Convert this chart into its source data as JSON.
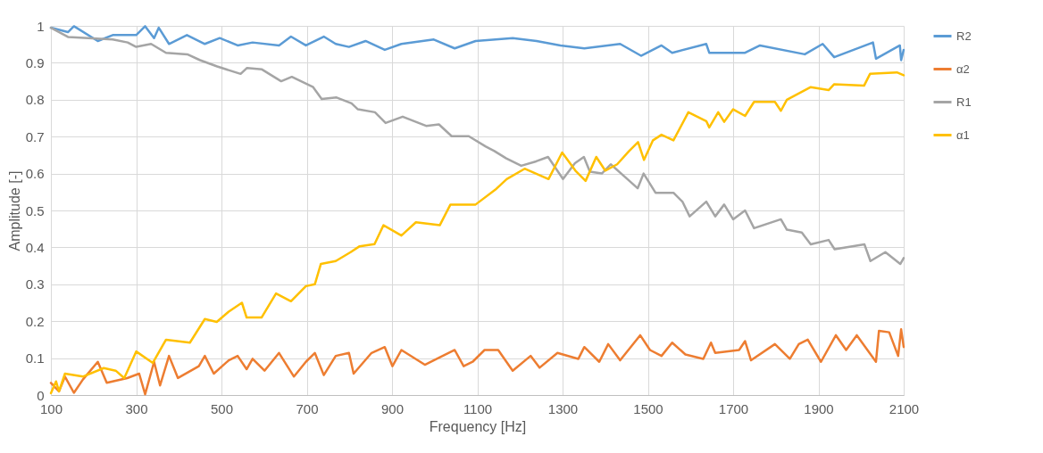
{
  "chart_data": {
    "type": "line",
    "xlabel": "Frequency [Hz]",
    "ylabel": "Amplitude [-]",
    "xlim": [
      100,
      2100
    ],
    "ylim": [
      0,
      1
    ],
    "xticks": [
      100,
      300,
      500,
      700,
      900,
      1100,
      1300,
      1500,
      1700,
      1900,
      2100
    ],
    "yticks": [
      0,
      0.1,
      0.2,
      0.3,
      0.4,
      0.5,
      0.6,
      0.7,
      0.8,
      0.9,
      1
    ],
    "grid": true,
    "legend": "right",
    "marker": "none",
    "line_style": "solid",
    "series": [
      {
        "name": "R2",
        "color": "#5b9bd5",
        "x": [
          100,
          140,
          154,
          210,
          245,
          300,
          321,
          342,
          353,
          377,
          419,
          461,
          496,
          538,
          573,
          635,
          663,
          698,
          740,
          768,
          799,
          838,
          883,
          922,
          998,
          1047,
          1096,
          1183,
          1239,
          1295,
          1351,
          1435,
          1484,
          1532,
          1557,
          1637,
          1644,
          1728,
          1763,
          1868,
          1910,
          1937,
          2028,
          2035,
          2091,
          2094,
          2100
        ],
        "values": [
          0.995,
          0.983,
          0.999,
          0.959,
          0.975,
          0.975,
          0.999,
          0.967,
          0.995,
          0.951,
          0.975,
          0.951,
          0.967,
          0.947,
          0.955,
          0.947,
          0.971,
          0.947,
          0.971,
          0.951,
          0.943,
          0.959,
          0.935,
          0.951,
          0.963,
          0.939,
          0.959,
          0.967,
          0.959,
          0.947,
          0.939,
          0.951,
          0.919,
          0.947,
          0.927,
          0.951,
          0.927,
          0.927,
          0.947,
          0.923,
          0.951,
          0.915,
          0.955,
          0.911,
          0.947,
          0.907,
          0.935
        ]
      },
      {
        "name": "α2",
        "color": "#ed7d31",
        "x": [
          100,
          119,
          133,
          154,
          175,
          210,
          231,
          279,
          307,
          321,
          342,
          356,
          377,
          398,
          447,
          461,
          482,
          517,
          538,
          559,
          573,
          601,
          635,
          670,
          698,
          719,
          740,
          768,
          799,
          810,
          852,
          883,
          901,
          922,
          977,
          1005,
          1047,
          1068,
          1089,
          1117,
          1149,
          1183,
          1225,
          1246,
          1288,
          1337,
          1351,
          1386,
          1407,
          1435,
          1482,
          1505,
          1532,
          1557,
          1588,
          1630,
          1648,
          1658,
          1714,
          1728,
          1742,
          1798,
          1833,
          1854,
          1875,
          1906,
          1941,
          1965,
          1990,
          2035,
          2042,
          2066,
          2087,
          2094,
          2100
        ],
        "values": [
          0.033,
          0.01,
          0.05,
          0.006,
          0.042,
          0.09,
          0.033,
          0.046,
          0.058,
          0.002,
          0.09,
          0.026,
          0.106,
          0.046,
          0.078,
          0.106,
          0.058,
          0.094,
          0.106,
          0.07,
          0.098,
          0.066,
          0.114,
          0.05,
          0.09,
          0.114,
          0.054,
          0.106,
          0.114,
          0.058,
          0.114,
          0.13,
          0.078,
          0.122,
          0.082,
          0.098,
          0.122,
          0.078,
          0.09,
          0.122,
          0.122,
          0.066,
          0.106,
          0.074,
          0.114,
          0.098,
          0.13,
          0.09,
          0.138,
          0.094,
          0.162,
          0.122,
          0.106,
          0.142,
          0.11,
          0.098,
          0.142,
          0.114,
          0.122,
          0.146,
          0.094,
          0.138,
          0.098,
          0.138,
          0.15,
          0.09,
          0.162,
          0.122,
          0.162,
          0.09,
          0.174,
          0.17,
          0.106,
          0.178,
          0.13
        ]
      },
      {
        "name": "R1",
        "color": "#a5a5a5",
        "x": [
          100,
          140,
          245,
          280,
          300,
          335,
          370,
          420,
          450,
          490,
          545,
          560,
          595,
          640,
          665,
          715,
          735,
          770,
          805,
          820,
          860,
          885,
          925,
          980,
          1010,
          1040,
          1080,
          1120,
          1140,
          1168,
          1203,
          1238,
          1266,
          1301,
          1329,
          1350,
          1364,
          1392,
          1413,
          1448,
          1476,
          1490,
          1518,
          1560,
          1581,
          1598,
          1637,
          1658,
          1679,
          1700,
          1728,
          1749,
          1812,
          1826,
          1861,
          1882,
          1924,
          1938,
          2008,
          2022,
          2057,
          2092,
          2100
        ],
        "values": [
          0.995,
          0.97,
          0.963,
          0.955,
          0.943,
          0.951,
          0.927,
          0.923,
          0.907,
          0.89,
          0.87,
          0.886,
          0.882,
          0.85,
          0.862,
          0.834,
          0.802,
          0.806,
          0.79,
          0.774,
          0.766,
          0.737,
          0.754,
          0.729,
          0.733,
          0.701,
          0.701,
          0.673,
          0.661,
          0.641,
          0.621,
          0.633,
          0.645,
          0.585,
          0.628,
          0.645,
          0.605,
          0.6,
          0.625,
          0.589,
          0.56,
          0.6,
          0.548,
          0.548,
          0.524,
          0.484,
          0.524,
          0.484,
          0.516,
          0.476,
          0.5,
          0.452,
          0.476,
          0.448,
          0.44,
          0.408,
          0.42,
          0.395,
          0.408,
          0.363,
          0.387,
          0.355,
          0.371
        ]
      },
      {
        "name": "α1",
        "color": "#ffc000",
        "x": [
          100,
          112,
          119,
          133,
          175,
          224,
          252,
          272,
          300,
          339,
          370,
          426,
          461,
          489,
          517,
          548,
          559,
          594,
          628,
          663,
          698,
          719,
          733,
          768,
          803,
          824,
          859,
          880,
          922,
          956,
          1012,
          1037,
          1096,
          1142,
          1169,
          1211,
          1267,
          1299,
          1330,
          1354,
          1379,
          1400,
          1428,
          1456,
          1477,
          1491,
          1512,
          1532,
          1560,
          1595,
          1637,
          1644,
          1665,
          1679,
          1700,
          1728,
          1749,
          1798,
          1812,
          1826,
          1882,
          1924,
          1937,
          2007,
          2021,
          2084,
          2100
        ],
        "values": [
          0.005,
          0.037,
          0.01,
          0.058,
          0.05,
          0.073,
          0.066,
          0.046,
          0.118,
          0.087,
          0.15,
          0.142,
          0.206,
          0.198,
          0.226,
          0.25,
          0.21,
          0.21,
          0.275,
          0.254,
          0.295,
          0.3,
          0.355,
          0.363,
          0.387,
          0.403,
          0.409,
          0.46,
          0.432,
          0.468,
          0.46,
          0.516,
          0.516,
          0.556,
          0.585,
          0.613,
          0.585,
          0.657,
          0.608,
          0.58,
          0.645,
          0.608,
          0.625,
          0.661,
          0.685,
          0.637,
          0.69,
          0.705,
          0.69,
          0.766,
          0.742,
          0.725,
          0.766,
          0.74,
          0.774,
          0.756,
          0.794,
          0.794,
          0.77,
          0.8,
          0.834,
          0.826,
          0.842,
          0.838,
          0.87,
          0.874,
          0.866
        ]
      }
    ]
  }
}
